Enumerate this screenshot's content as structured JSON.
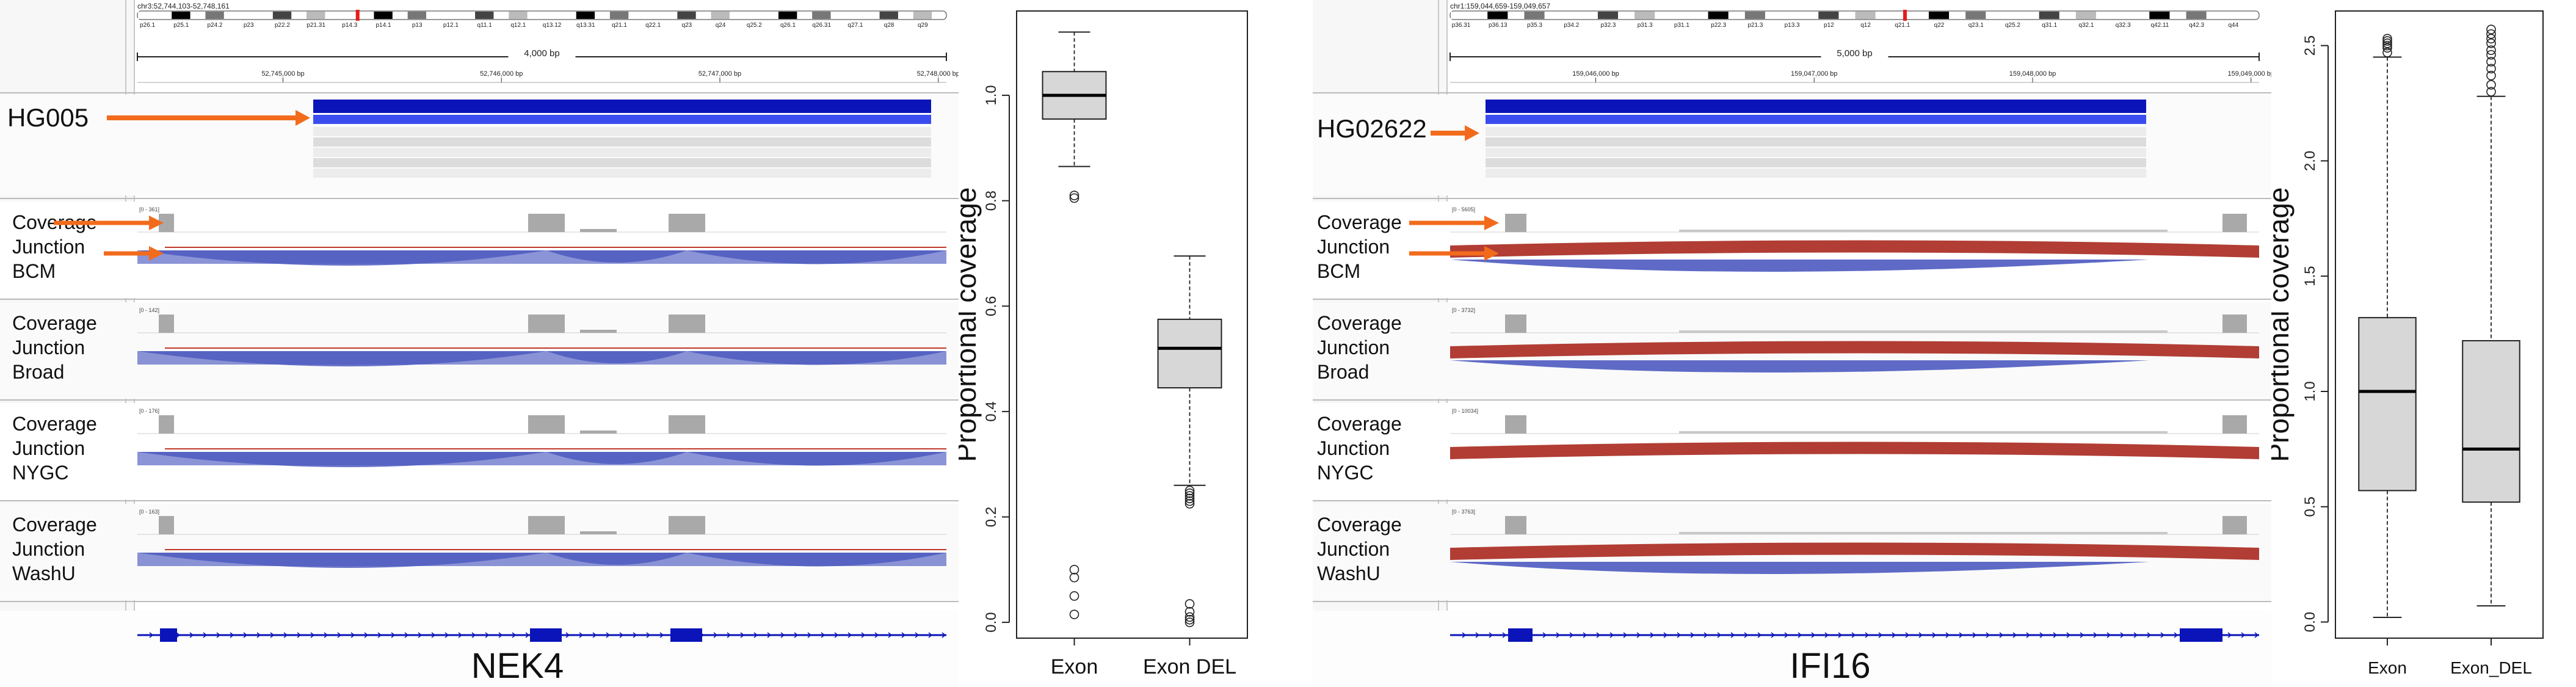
{
  "colors": {
    "orange": "#f26b1d",
    "igv_blue": "#0a14b8",
    "igv_blue_light": "#3a4cf0",
    "arc_blue": "#4d5ac0",
    "arc_red": "#a8281e",
    "coverage_gray": "#a9a9a9",
    "box_fill": "#d7d7d7"
  },
  "panels": [
    {
      "id": "nek4",
      "locus": "chr3:52,744,103-52,748,161",
      "scale_label": "4,000 bp",
      "ruler_ticks": [
        "52,745,000 bp",
        "52,746,000 bp",
        "52,747,000 bp",
        "52,748,000 bp"
      ],
      "ideogram_bands": [
        "p26.1",
        "p25.1",
        "p24.2",
        "p23",
        "p22.2",
        "p21.31",
        "p14.3",
        "p14.1",
        "p13",
        "p12.1",
        "q11.1",
        "q12.1",
        "q13.12",
        "q13.31",
        "q21.1",
        "q22.1",
        "q23",
        "q24",
        "q25.2",
        "q26.1",
        "q26.31",
        "q27.1",
        "q28",
        "q29"
      ],
      "sample_label": "HG005",
      "tracks": [
        {
          "lines": [
            "Coverage",
            "Junction",
            "BCM"
          ],
          "range": "[0 - 361]",
          "arrows": true
        },
        {
          "lines": [
            "Coverage",
            "Junction",
            "Broad"
          ],
          "range": "[0 - 142]",
          "arrows": false
        },
        {
          "lines": [
            "Coverage",
            "Junction",
            "NYGC"
          ],
          "range": "[0 - 176]",
          "arrows": false
        },
        {
          "lines": [
            "Coverage",
            "Junction",
            "WashU"
          ],
          "range": "[0 - 163]",
          "arrows": false
        }
      ],
      "gene_name": "NEK4",
      "arc_color": "blue"
    },
    {
      "id": "ifi16",
      "locus": "chr1:159,044,659-159,049,657",
      "scale_label": "5,000 bp",
      "ruler_ticks": [
        "159,046,000 bp",
        "159,047,000 bp",
        "159,048,000 bp",
        "159,049,000 bp"
      ],
      "ideogram_bands": [
        "p36.31",
        "p36.13",
        "p35.3",
        "p34.2",
        "p32.3",
        "p31.3",
        "p31.1",
        "p22.3",
        "p21.3",
        "p13.3",
        "p12",
        "q12",
        "q21.1",
        "q22",
        "q23.1",
        "q25.2",
        "q31.1",
        "q32.1",
        "q32.3",
        "q42.11",
        "q42.3",
        "q44"
      ],
      "sample_label": "HG02622",
      "tracks": [
        {
          "lines": [
            "Coverage",
            "Junction",
            "BCM"
          ],
          "range": "[0 - 5605]",
          "arrows": true
        },
        {
          "lines": [
            "Coverage",
            "Junction",
            "Broad"
          ],
          "range": "[0 - 3732]",
          "arrows": false
        },
        {
          "lines": [
            "Coverage",
            "Junction",
            "NYGC"
          ],
          "range": "[0 - 10034]",
          "arrows": false
        },
        {
          "lines": [
            "Coverage",
            "Junction",
            "WashU"
          ],
          "range": "[0 - 3763]",
          "arrows": false
        }
      ],
      "gene_name": "IFI16",
      "arc_color": "red"
    }
  ],
  "chart_data": [
    {
      "type": "box",
      "ylabel": "Proportional coverage",
      "categories": [
        "Exon",
        "Exon DEL"
      ],
      "ylim": [
        -0.03,
        1.16
      ],
      "yticks": [
        "0.0",
        "0.2",
        "0.4",
        "0.6",
        "0.8",
        "1.0"
      ],
      "boxes": [
        {
          "whisker_low": 0.865,
          "q1": 0.955,
          "median": 1.0,
          "q3": 1.045,
          "whisker_high": 1.12,
          "outliers": [
            0.81,
            0.805,
            0.1,
            0.085,
            0.05,
            0.015
          ]
        },
        {
          "whisker_low": 0.26,
          "q1": 0.445,
          "median": 0.52,
          "q3": 0.575,
          "whisker_high": 0.695,
          "outliers": [
            0.25,
            0.245,
            0.24,
            0.235,
            0.23,
            0.225,
            0.035,
            0.02,
            0.01,
            0.005,
            0.0
          ]
        }
      ]
    },
    {
      "type": "box",
      "ylabel": "Proportional coverage",
      "categories": [
        "Exon",
        "Exon_DEL"
      ],
      "ylim": [
        -0.07,
        2.65
      ],
      "yticks": [
        "0.0",
        "0.5",
        "1.0",
        "1.5",
        "2.0",
        "2.5"
      ],
      "boxes": [
        {
          "whisker_low": 0.02,
          "q1": 0.57,
          "median": 1.0,
          "q3": 1.32,
          "whisker_high": 2.45,
          "outliers": [
            2.47,
            2.49,
            2.5,
            2.51,
            2.52,
            2.53
          ]
        },
        {
          "whisker_low": 0.07,
          "q1": 0.52,
          "median": 0.75,
          "q3": 1.22,
          "whisker_high": 2.28,
          "outliers": [
            2.3,
            2.33,
            2.37,
            2.4,
            2.43,
            2.46,
            2.48,
            2.51,
            2.53,
            2.55,
            2.57
          ]
        }
      ]
    }
  ]
}
